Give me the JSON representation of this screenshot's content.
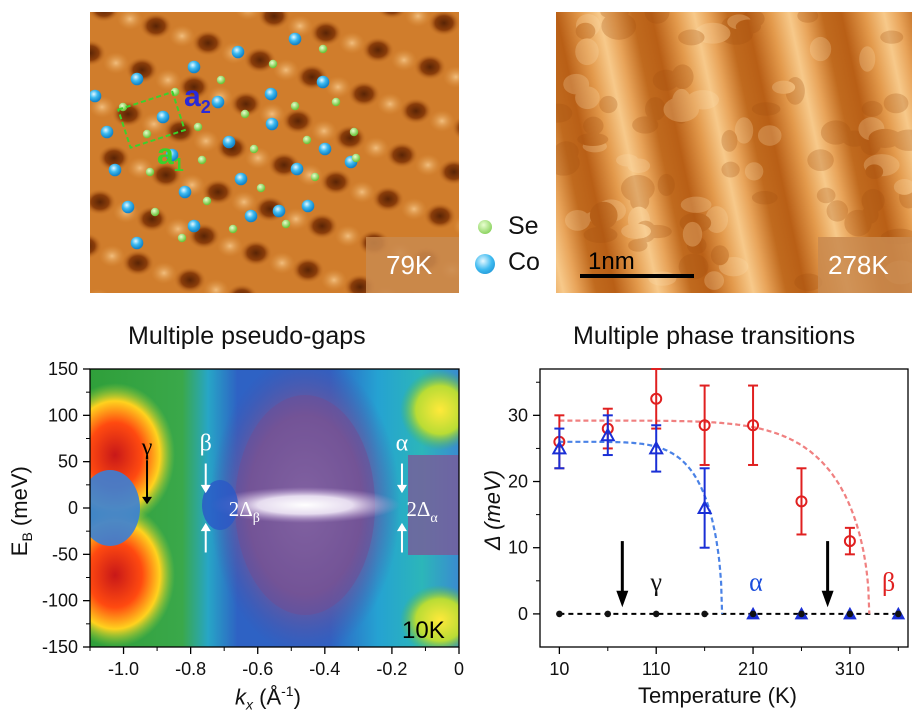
{
  "stm_left": {
    "temperature": "79K",
    "legend": [
      {
        "label": "Se",
        "color": "#7fd14a"
      },
      {
        "label": "Co",
        "color": "#1aa7e8"
      }
    ],
    "vectors": {
      "a2": "a",
      "a2_sub": "2",
      "a1": "a",
      "a1_sub": "1"
    }
  },
  "stm_right": {
    "temperature": "278K",
    "scale_bar": "1nm"
  },
  "chart_data": [
    {
      "type": "heatmap",
      "title": "Multiple pseudo-gaps",
      "xlabel": "k",
      "xlabel_sub": "x",
      "xlabel_unit": "(Å",
      "xlabel_sup": "-1",
      "xlabel_close": ")",
      "ylabel": "E",
      "ylabel_sub": "B",
      "ylabel_unit": "(meV)",
      "xlim": [
        -1.1,
        0
      ],
      "ylim": [
        -150,
        150
      ],
      "xticks": [
        -1.0,
        -0.8,
        -0.6,
        -0.4,
        -0.2,
        0
      ],
      "xtick_labels": [
        "-1.0",
        "-0.8",
        "-0.6",
        "-0.4",
        "-0.2",
        "0"
      ],
      "yticks": [
        150,
        100,
        50,
        0,
        -50,
        -100,
        -150
      ],
      "ytick_labels": [
        "150",
        "100",
        "50",
        "0",
        "-50",
        "-100",
        "-150"
      ],
      "temperature": "10K",
      "annotations": [
        {
          "text": "γ",
          "k": -0.93,
          "e": 58
        },
        {
          "text": "β",
          "k": -0.755,
          "e": 62
        },
        {
          "text": "α",
          "k": -0.17,
          "e": 62
        },
        {
          "text": "2Δ",
          "sub": "β",
          "k": -0.64,
          "e": 0
        },
        {
          "text": "2Δ",
          "sub": "α",
          "k": -0.11,
          "e": 0
        }
      ]
    },
    {
      "type": "scatter",
      "title": "Multiple phase transitions",
      "xlabel": "Temperature (K)",
      "ylabel": "Δ (meV)",
      "xlim": [
        -10,
        370
      ],
      "ylim": [
        -5,
        37
      ],
      "xticks": [
        10,
        110,
        210,
        310
      ],
      "yticks": [
        0,
        10,
        20,
        30
      ],
      "series": [
        {
          "name": "β",
          "color": "#e02020",
          "marker": "circle",
          "x": [
            10,
            60,
            110,
            160,
            210,
            260,
            310
          ],
          "y": [
            26,
            28,
            32.5,
            28.5,
            28.5,
            17,
            11
          ],
          "err": [
            4,
            3,
            4.5,
            6,
            6,
            5,
            2
          ]
        },
        {
          "name": "α",
          "color": "#1a2fd6",
          "marker": "triangle",
          "x": [
            10,
            60,
            110,
            160
          ],
          "y": [
            25,
            27,
            25,
            16
          ],
          "err": [
            3,
            3,
            3.5,
            6
          ]
        },
        {
          "name": "α-zero",
          "color": "#1a2fd6",
          "marker": "triangle-filled",
          "x": [
            210,
            260,
            310,
            360
          ],
          "y": [
            0,
            0,
            0,
            0
          ],
          "err": []
        },
        {
          "name": "zero",
          "color": "#111111",
          "marker": "dot",
          "x": [
            10,
            60,
            110,
            160,
            210,
            260,
            310,
            360
          ],
          "y": [
            0,
            0,
            0,
            0,
            0,
            0,
            0,
            0
          ],
          "err": []
        }
      ],
      "fits": [
        {
          "color": "#f08080",
          "T0": 330,
          "A": 29.2
        },
        {
          "color": "#4a82e6",
          "T0": 178,
          "A": 26
        }
      ],
      "annotations": [
        {
          "text": "γ",
          "x": 110,
          "y": 3.5,
          "color": "#111111"
        },
        {
          "text": "α",
          "x": 213,
          "y": 3.5,
          "color": "#1a4ddc"
        },
        {
          "text": "β",
          "x": 350,
          "y": 3.5,
          "color": "#e02020"
        }
      ],
      "arrows_x": [
        75,
        287
      ]
    }
  ]
}
